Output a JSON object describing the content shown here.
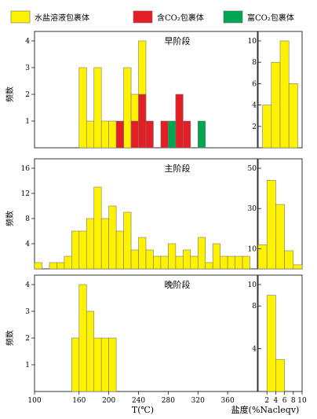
{
  "colors": {
    "yellow": "#FFF200",
    "red": "#E31E24",
    "green": "#00A651"
  },
  "legend": [
    {
      "label": "水盐溶液包裹体",
      "color": "yellow"
    },
    {
      "label": "含CO₂包裹体",
      "color": "red"
    },
    {
      "label": "富CO₂包裹体",
      "color": "green"
    }
  ],
  "temperature_axis": {
    "label": "T(℃)",
    "ticks": [
      "100",
      "160",
      "200",
      "240",
      "280",
      "320",
      "360"
    ],
    "range": [
      100,
      400
    ]
  },
  "salinity_axis": {
    "label": "盐度(%Nacleqv)",
    "ticks": [
      "2",
      "4",
      "6",
      "8",
      "10"
    ],
    "range": [
      0,
      10
    ]
  },
  "chart_data": [
    {
      "type": "bar",
      "title": "早阶段",
      "ylabel": "频数",
      "ylim": [
        0,
        4
      ],
      "yticks": [
        "1",
        "2",
        "3",
        "4"
      ],
      "bin_width": 10,
      "series": [
        {
          "name": "水盐溶液包裹体",
          "color": "yellow",
          "x": [
            165,
            175,
            185,
            195,
            205,
            225,
            235,
            245
          ],
          "values": [
            3,
            1,
            3,
            1,
            1,
            3,
            2,
            4
          ]
        },
        {
          "name": "含CO₂包裹体",
          "color": "red",
          "x": [
            215,
            235,
            245,
            255,
            275,
            295,
            305
          ],
          "values": [
            1,
            1,
            2,
            1,
            1,
            2,
            1
          ]
        },
        {
          "name": "富CO₂包裹体",
          "color": "green",
          "x": [
            285,
            325
          ],
          "values": [
            1,
            1
          ]
        }
      ]
    },
    {
      "type": "bar",
      "title": "早阶段",
      "subplot": "salinity",
      "ylim": [
        0,
        10
      ],
      "yticks": [
        "2",
        "4",
        "6",
        "8",
        "10"
      ],
      "categories_x": [
        2,
        4,
        6,
        8
      ],
      "values": [
        4,
        8,
        10,
        6
      ]
    },
    {
      "type": "bar",
      "title": "主阶段",
      "ylabel": "频数",
      "ylim": [
        0,
        16
      ],
      "yticks": [
        "4",
        "8",
        "12",
        "16"
      ],
      "bin_width": 10,
      "x": [
        105,
        125,
        135,
        145,
        155,
        165,
        175,
        185,
        195,
        205,
        215,
        225,
        235,
        245,
        255,
        265,
        275,
        285,
        295,
        305,
        315,
        325,
        335,
        345,
        355,
        365,
        375,
        385
      ],
      "values": [
        1,
        1,
        1,
        2,
        6,
        6,
        8,
        13,
        8,
        10,
        6,
        9,
        3,
        5,
        3,
        2,
        2,
        4,
        2,
        3,
        2,
        5,
        1,
        4,
        2,
        2,
        2,
        2
      ]
    },
    {
      "type": "bar",
      "title": "主阶段",
      "subplot": "salinity",
      "ylim": [
        0,
        50
      ],
      "yticks": [
        "10",
        "30",
        "50"
      ],
      "categories_x": [
        1,
        3,
        5,
        7,
        9
      ],
      "values": [
        12,
        44,
        32,
        9,
        2
      ]
    },
    {
      "type": "bar",
      "title": "晚阶段",
      "ylabel": "频数",
      "ylim": [
        0,
        4
      ],
      "yticks": [
        "1",
        "2",
        "3",
        "4"
      ],
      "bin_width": 10,
      "x": [
        155,
        165,
        175,
        185,
        195,
        205
      ],
      "values": [
        2,
        4,
        3,
        2,
        2,
        2
      ]
    },
    {
      "type": "bar",
      "title": "晚阶段",
      "subplot": "salinity",
      "ylim": [
        0,
        10
      ],
      "yticks": [
        "4",
        "8",
        "10"
      ],
      "categories_x": [
        3,
        5
      ],
      "values": [
        9,
        3
      ]
    }
  ]
}
